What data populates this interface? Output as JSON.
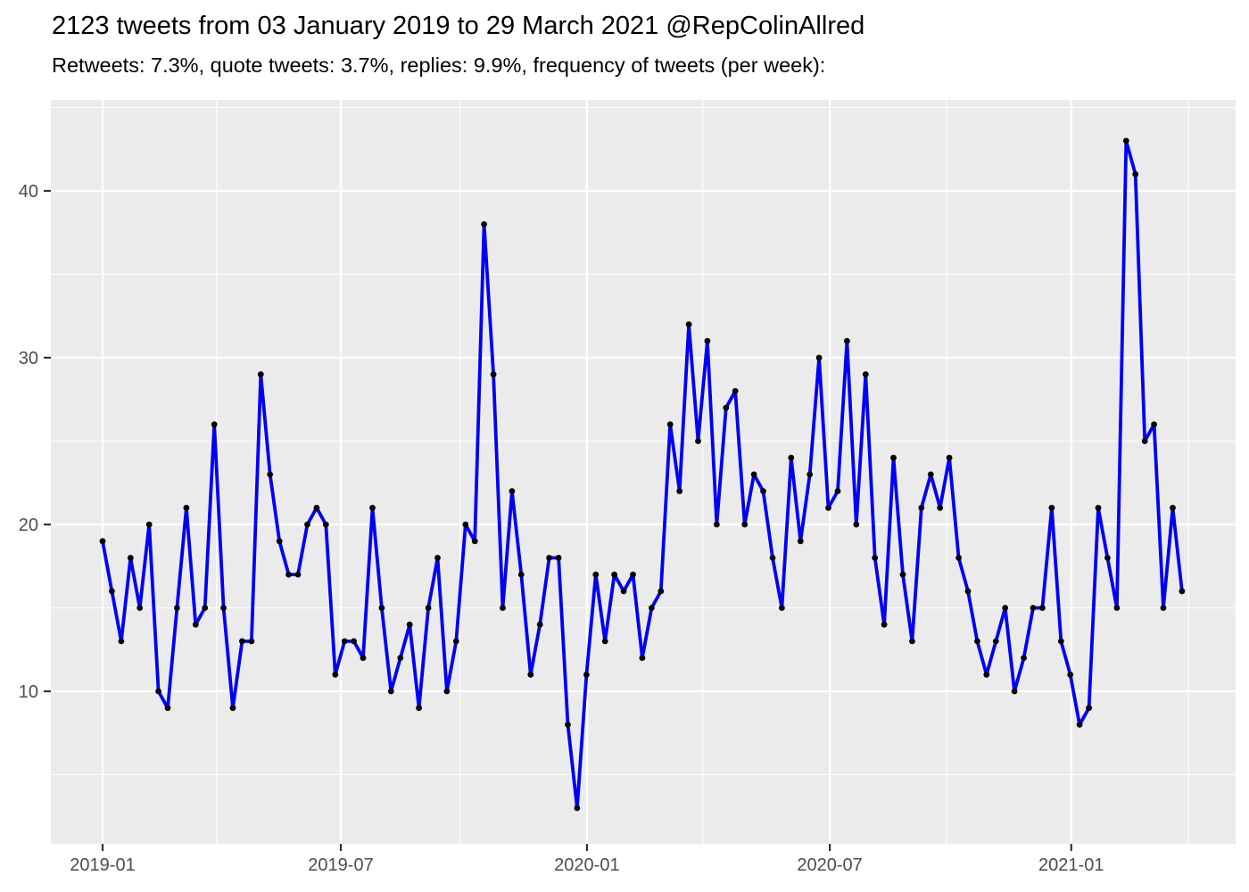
{
  "chart_data": {
    "type": "line",
    "title": "2123 tweets from 03 January 2019 to 29 March 2021 @RepColinAllred",
    "subtitle": "Retweets: 7.3%, quote tweets: 3.7%, replies: 9.9%, frequency of tweets (per week):",
    "series_name": "tweets per week",
    "x_unit": "week index from 2019-01-03",
    "values": [
      19,
      16,
      13,
      18,
      15,
      20,
      10,
      9,
      15,
      21,
      14,
      15,
      26,
      15,
      9,
      13,
      13,
      29,
      23,
      19,
      17,
      17,
      20,
      21,
      20,
      11,
      13,
      13,
      12,
      21,
      15,
      10,
      12,
      14,
      9,
      15,
      18,
      10,
      13,
      20,
      19,
      38,
      29,
      15,
      22,
      17,
      11,
      14,
      18,
      18,
      8,
      3,
      11,
      17,
      13,
      17,
      16,
      17,
      12,
      15,
      16,
      26,
      22,
      32,
      25,
      31,
      20,
      27,
      28,
      20,
      23,
      22,
      18,
      15,
      24,
      19,
      23,
      30,
      21,
      22,
      31,
      20,
      29,
      18,
      14,
      24,
      17,
      13,
      21,
      23,
      21,
      24,
      18,
      16,
      13,
      11,
      13,
      15,
      10,
      12,
      15,
      15,
      21,
      13,
      11,
      8,
      9,
      21,
      18,
      15,
      43,
      41,
      25,
      26,
      15,
      21,
      16
    ],
    "values_total": 2123,
    "x_ticks": [
      {
        "label": "2019-01",
        "week": 0
      },
      {
        "label": "2019-07",
        "week": 25.6
      },
      {
        "label": "2020-01",
        "week": 52.05
      },
      {
        "label": "2020-07",
        "week": 78.15
      },
      {
        "label": "2021-01",
        "week": 104.1
      }
    ],
    "x_minor_weeks": [
      12.25,
      38.4,
      64.5,
      90.7,
      116.7
    ],
    "y_ticks": [
      10,
      20,
      30,
      40
    ],
    "y_minor_ticks": [
      5,
      15,
      25,
      35,
      45
    ],
    "ylim": [
      1,
      45.4
    ],
    "xlim_weeks": [
      -5.6,
      121.8
    ],
    "xlabel": "",
    "ylabel": "",
    "grid": "major-and-minor",
    "legend": "none",
    "colors": {
      "panel_background": "#ebebeb",
      "gridline": "#ffffff",
      "line": "#0000f5",
      "point": "#000000",
      "tick_text": "#4d4d4d",
      "tick_mark": "#333333",
      "title_text": "#000000",
      "figure_background": "#ffffff"
    }
  }
}
